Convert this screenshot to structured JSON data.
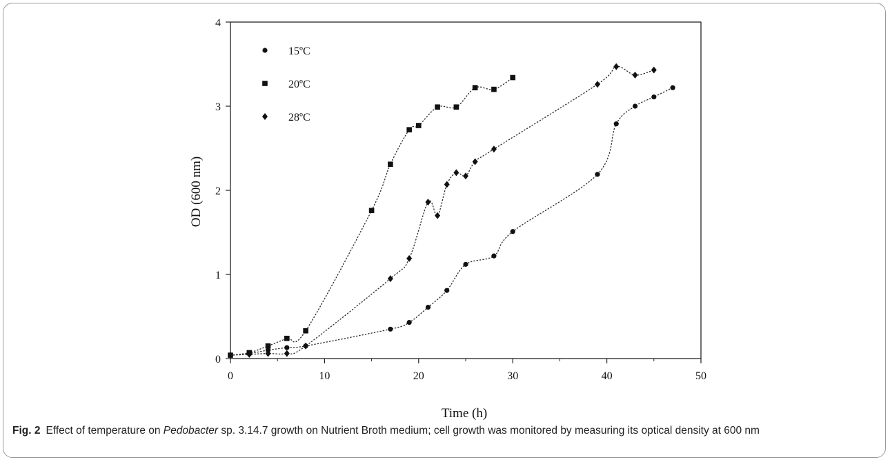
{
  "chart_data": {
    "type": "scatter",
    "xlabel": "Time (h)",
    "ylabel": "OD (600 nm)",
    "xlim": [
      0,
      50
    ],
    "ylim": [
      0,
      4
    ],
    "xticks": [
      0,
      10,
      20,
      30,
      40,
      50
    ],
    "yticks": [
      0,
      1,
      2,
      3,
      4
    ],
    "grid": false,
    "legend": "top-left",
    "trendline": "dotted",
    "series": [
      {
        "name": "15ºC",
        "marker": "circle",
        "points": [
          [
            0,
            0.04
          ],
          [
            2,
            0.06
          ],
          [
            4,
            0.1
          ],
          [
            6,
            0.13
          ],
          [
            8,
            0.15
          ],
          [
            17,
            0.35
          ],
          [
            19,
            0.43
          ],
          [
            21,
            0.61
          ],
          [
            23,
            0.81
          ],
          [
            25,
            1.12
          ],
          [
            28,
            1.22
          ],
          [
            30,
            1.51
          ],
          [
            39,
            2.19
          ],
          [
            41,
            2.79
          ],
          [
            43,
            3.0
          ],
          [
            45,
            3.11
          ],
          [
            47,
            3.22
          ]
        ]
      },
      {
        "name": "20ºC",
        "marker": "square",
        "points": [
          [
            0,
            0.04
          ],
          [
            2,
            0.07
          ],
          [
            4,
            0.15
          ],
          [
            6,
            0.24
          ],
          [
            8,
            0.33
          ],
          [
            15,
            1.76
          ],
          [
            17,
            2.31
          ],
          [
            19,
            2.72
          ],
          [
            20,
            2.77
          ],
          [
            22,
            2.99
          ],
          [
            24,
            2.99
          ],
          [
            26,
            3.22
          ],
          [
            28,
            3.2
          ],
          [
            30,
            3.34
          ]
        ]
      },
      {
        "name": "28ºC",
        "marker": "diamond",
        "points": [
          [
            0,
            0.04
          ],
          [
            2,
            0.05
          ],
          [
            4,
            0.06
          ],
          [
            6,
            0.06
          ],
          [
            8,
            0.15
          ],
          [
            17,
            0.95
          ],
          [
            19,
            1.19
          ],
          [
            21,
            1.86
          ],
          [
            22,
            1.7
          ],
          [
            23,
            2.07
          ],
          [
            24,
            2.21
          ],
          [
            25,
            2.17
          ],
          [
            26,
            2.34
          ],
          [
            28,
            2.49
          ],
          [
            39,
            3.26
          ],
          [
            41,
            3.47
          ],
          [
            43,
            3.37
          ],
          [
            45,
            3.43
          ]
        ]
      }
    ]
  },
  "caption": {
    "label": "Fig. 2",
    "text_before": "Effect of temperature on ",
    "organism": "Pedobacter",
    "text_after": " sp. 3.14.7 growth on Nutrient Broth medium; cell growth was monitored by measuring its optical density at 600 nm"
  }
}
